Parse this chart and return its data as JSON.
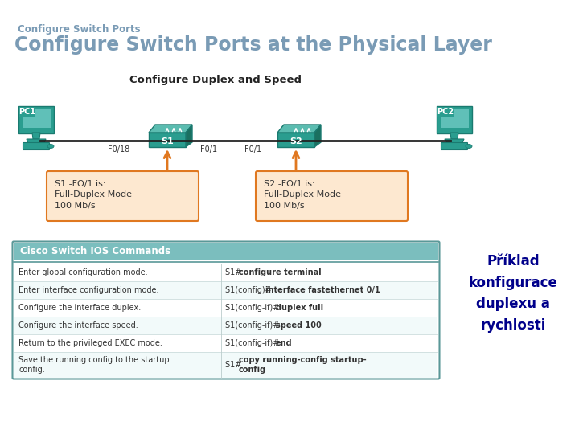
{
  "bg_color": "#f0f0f0",
  "title_small": "Configure Switch Ports",
  "title_large": "Configure Switch Ports at the Physical Layer",
  "subtitle": "Configure Duplex and Speed",
  "title_small_color": "#7a9bb5",
  "title_large_color": "#7a9bb5",
  "subtitle_color": "#222222",
  "teal_color": "#2a9d8f",
  "teal_dark": "#1a7a70",
  "teal_light": "#5bbcb0",
  "orange_color": "#e07820",
  "orange_box_bg": "#fde8d0",
  "orange_box_border": "#e07820",
  "table_header_bg": "#7bbebe",
  "table_border": "#5a9898",
  "table_text": "#333333",
  "czech_text_color": "#00008b",
  "table_rows_left": [
    "Enter global configuration mode.",
    "Enter interface configuration mode.",
    "Configure the interface duplex.",
    "Configure the interface speed.",
    "Return to the privileged EXEC mode.",
    "Save the running config to the startup\nconfig."
  ],
  "table_rows_right_normal": [
    "S1# ",
    "S1(config)# ",
    "S1(config-if)# ",
    "S1(config-if)# ",
    "S1(config-if)# ",
    "S1# "
  ],
  "table_rows_right_bold": [
    "configure terminal",
    "interface fastethernet 0/1",
    "duplex full",
    "speed 100",
    "end",
    "copy running-config startup-\nconfig"
  ],
  "czech_text": "Příklad\nkonfigurace\nduplexu a\nrychlosti"
}
